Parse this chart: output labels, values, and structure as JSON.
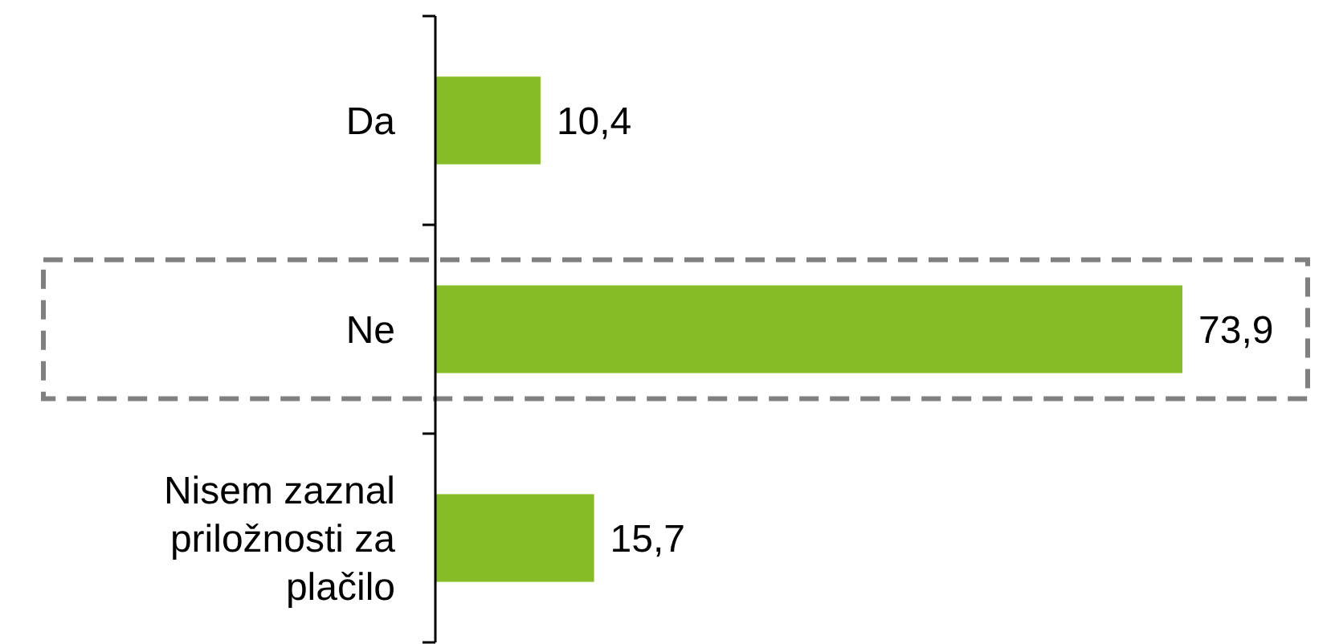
{
  "chart_data": {
    "type": "bar",
    "orientation": "horizontal",
    "categories": [
      "Da",
      "Ne",
      "Nisem zaznal priložnosti za plačilo"
    ],
    "values": [
      10.4,
      73.9,
      15.7
    ],
    "value_labels": [
      "10,4",
      "73,9",
      "15,7"
    ],
    "color": "#86bc25"
  }
}
